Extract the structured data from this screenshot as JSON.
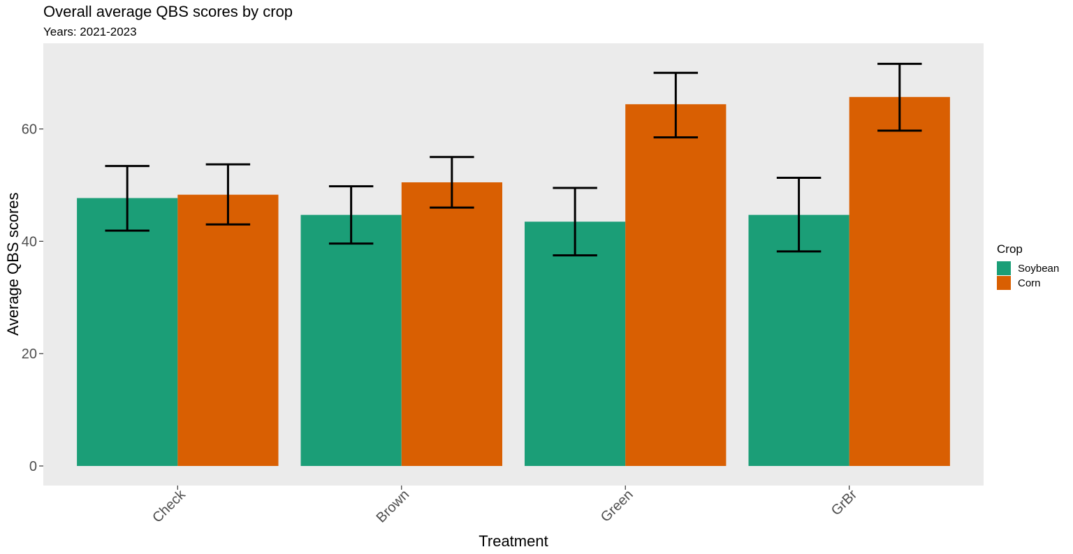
{
  "chart_data": {
    "type": "bar",
    "title": "Overall average QBS scores by crop",
    "subtitle": "Years: 2021-2023",
    "xlabel": "Treatment",
    "ylabel": "Average QBS scores",
    "categories": [
      "Check",
      "Brown",
      "Green",
      "GrBr"
    ],
    "ylim": [
      0,
      75
    ],
    "yticks": [
      0,
      20,
      40,
      60
    ],
    "grid": false,
    "legend": {
      "title": "Crop",
      "position": "right"
    },
    "series": [
      {
        "name": "Soybean",
        "color": "#1b9e77",
        "values": [
          47.7,
          44.7,
          43.5,
          44.7
        ],
        "error_low": [
          41.9,
          39.6,
          37.5,
          38.2
        ],
        "error_high": [
          53.4,
          49.8,
          49.5,
          51.3
        ]
      },
      {
        "name": "Corn",
        "color": "#d95f02",
        "values": [
          48.3,
          50.5,
          64.4,
          65.7
        ],
        "error_low": [
          43.0,
          46.0,
          58.5,
          59.7
        ],
        "error_high": [
          53.7,
          55.0,
          70.0,
          71.6
        ]
      }
    ],
    "panel_background": "#ebebeb"
  }
}
